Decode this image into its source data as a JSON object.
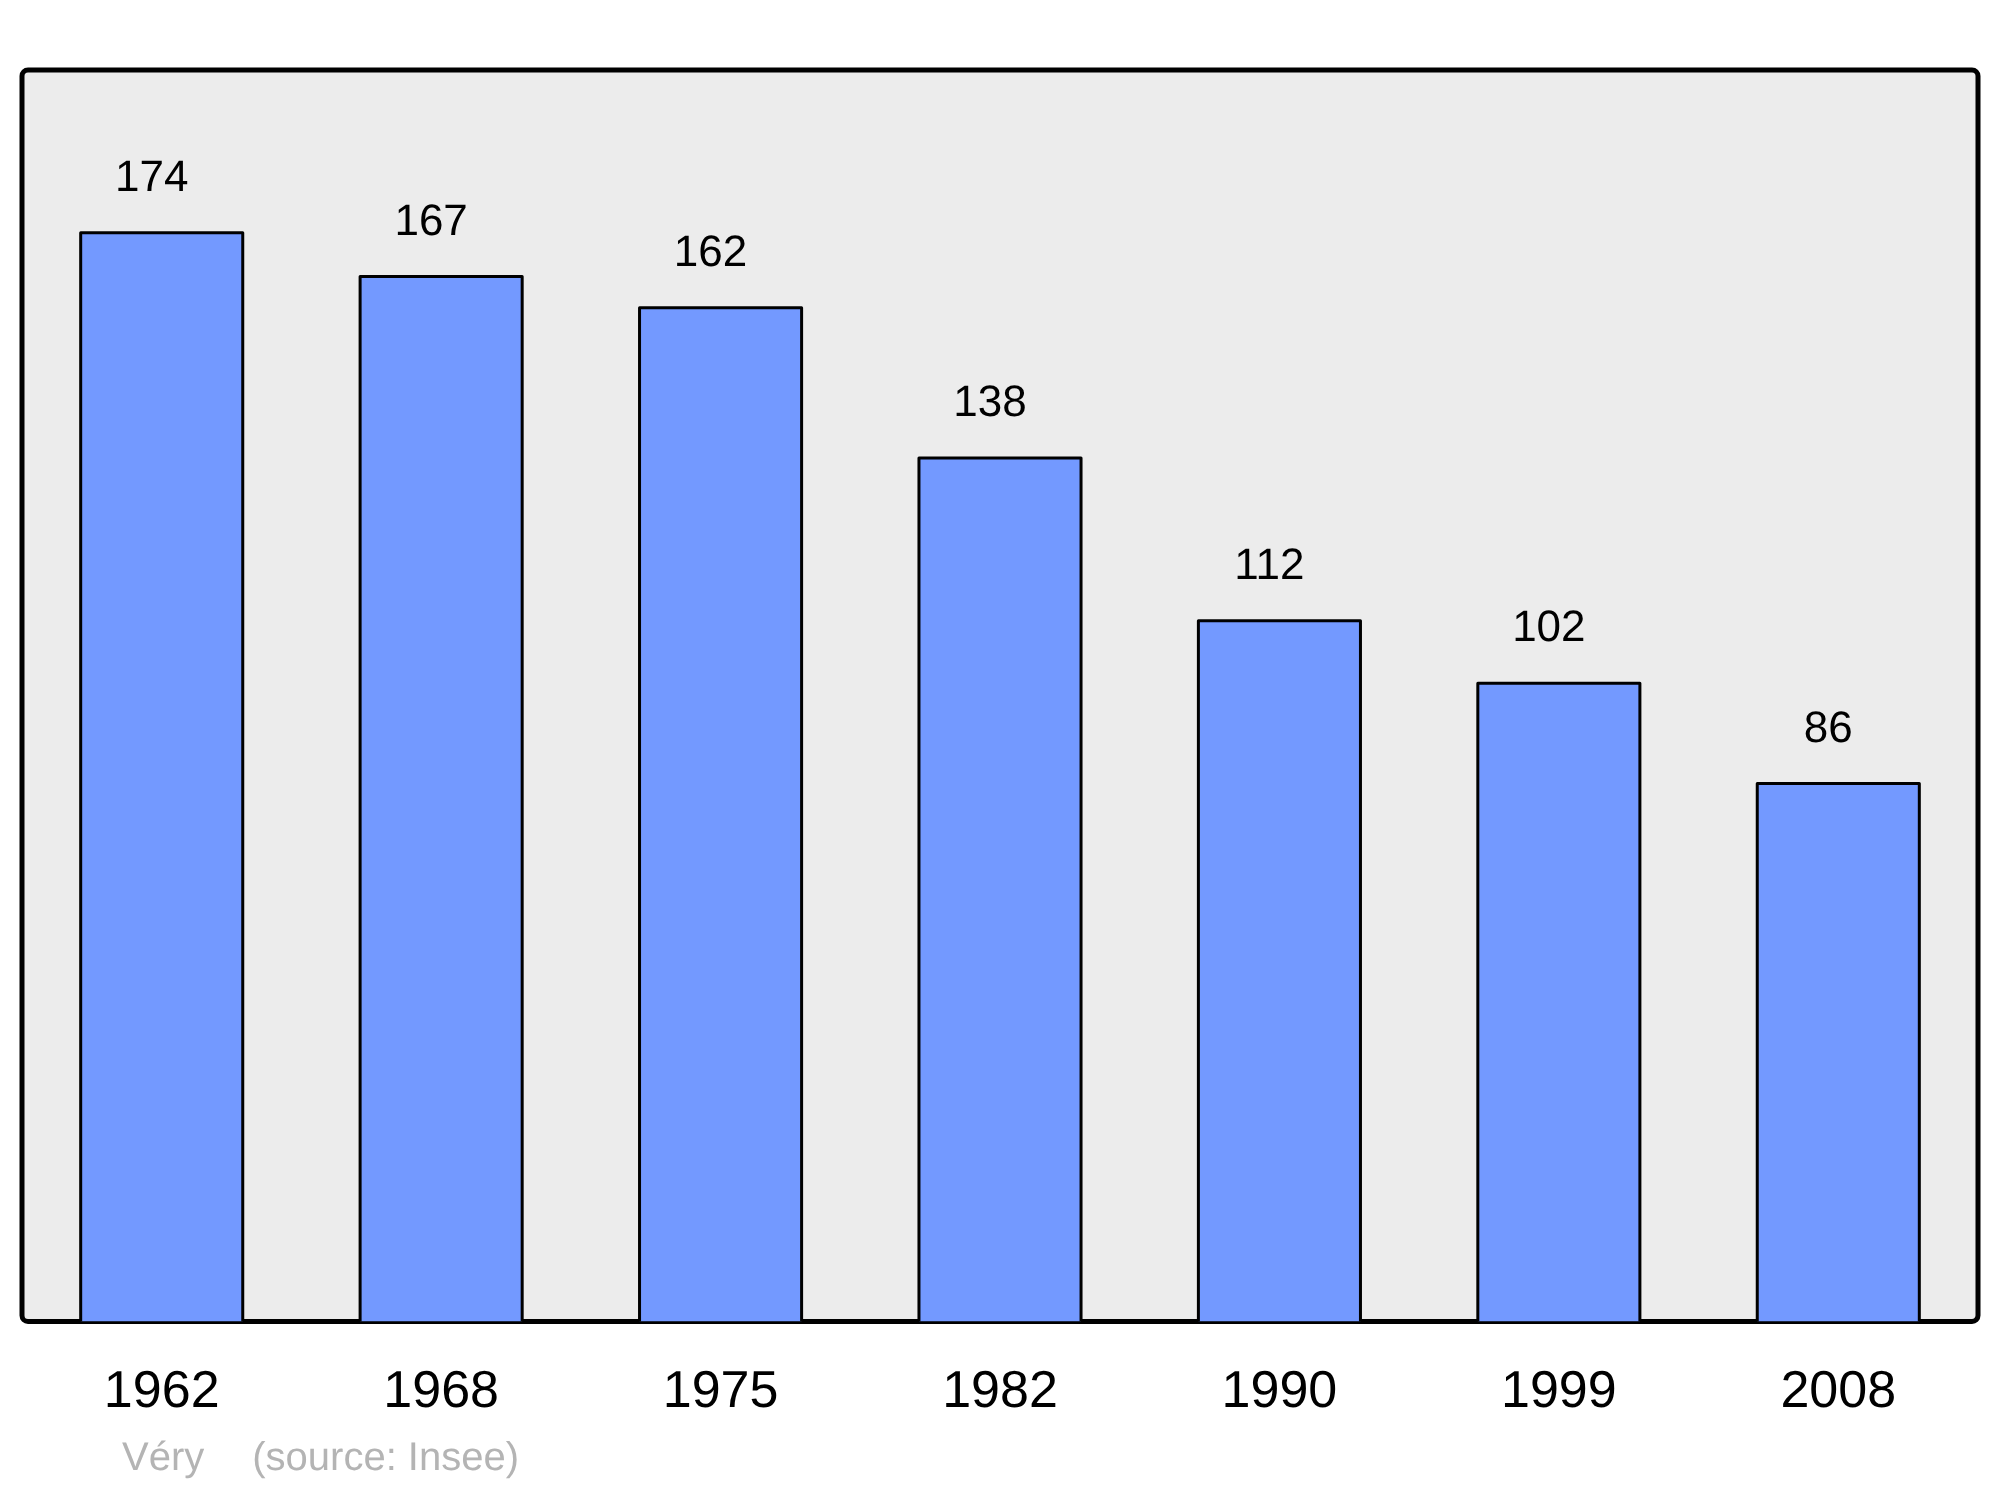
{
  "chart_data": {
    "type": "bar",
    "categories": [
      "1962",
      "1968",
      "1975",
      "1982",
      "1990",
      "1999",
      "2008"
    ],
    "values": [
      174,
      167,
      162,
      138,
      112,
      102,
      86
    ],
    "color": "#7399ff",
    "data_labels": true,
    "grid": false,
    "legend": false,
    "annotations": [
      "Véry",
      "(source: Insee)"
    ]
  }
}
